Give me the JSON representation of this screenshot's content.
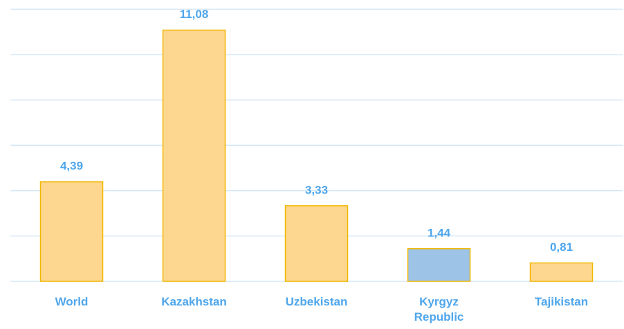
{
  "chart_data": {
    "type": "bar",
    "categories": [
      "World",
      "Kazakhstan",
      "Uzbekistan",
      "Kyrgyz Republic",
      "Tajikistan"
    ],
    "values": [
      4.39,
      11.08,
      3.33,
      1.44,
      0.81
    ],
    "value_labels": [
      "4,39",
      "11,08",
      "3,33",
      "1,44",
      "0,81"
    ],
    "colors": [
      "#fdd790",
      "#fdd790",
      "#fdd790",
      "#9dc3e6",
      "#fdd790"
    ],
    "edge_color": "#f2b700",
    "label_color": "#4ea6ec",
    "ylim": [
      0,
      12
    ],
    "yticks": [
      0,
      2,
      4,
      6,
      8,
      10,
      12
    ],
    "grid": true
  }
}
